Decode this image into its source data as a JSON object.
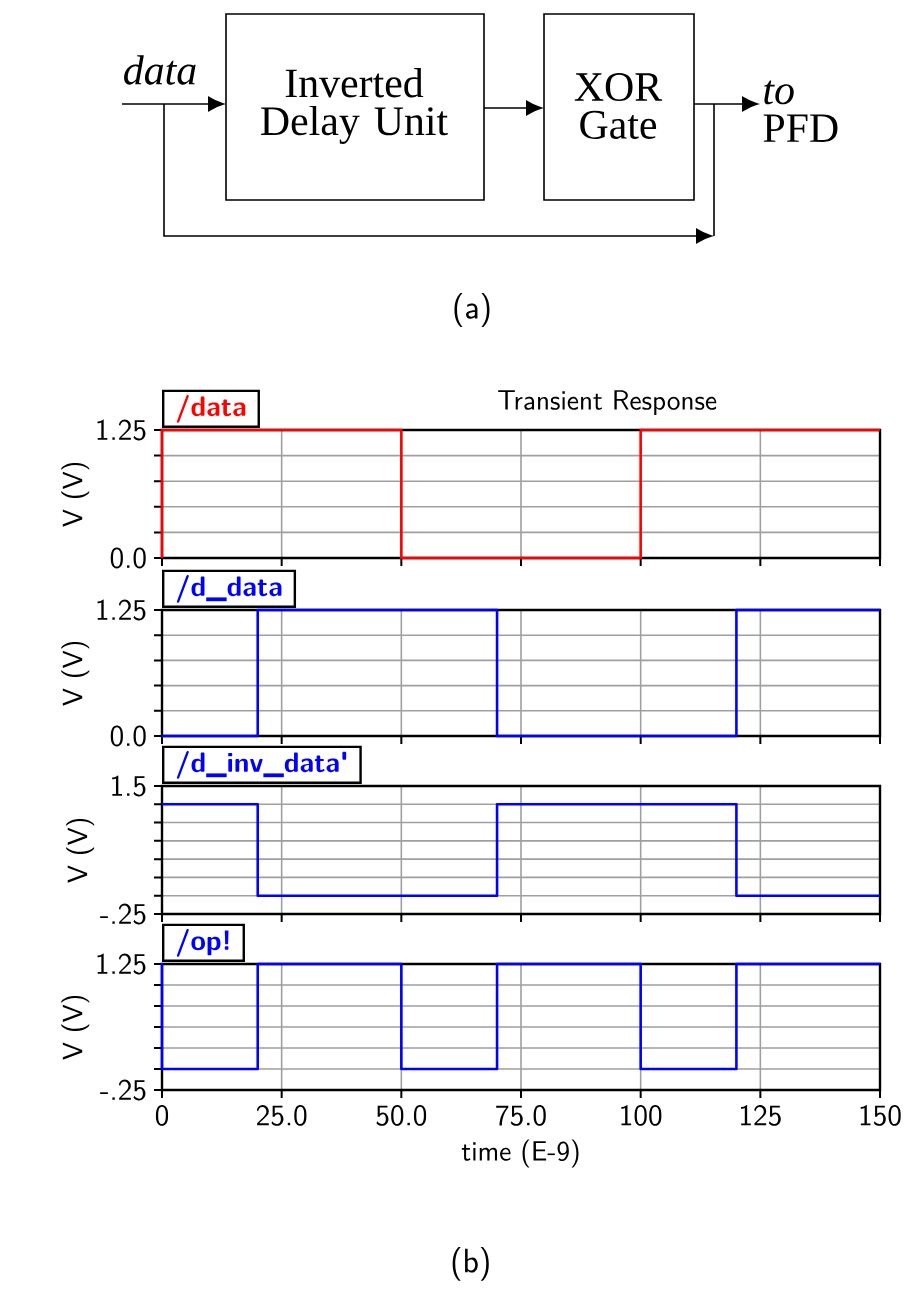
{
  "chart_data": [
    {
      "type": "other",
      "annotations": [
        "data",
        "Inverted Delay Unit",
        "XOR Gate",
        "*to* PFD",
        "(a)"
      ]
    },
    {
      "type": "line",
      "title": "Transient Response",
      "ylabel": "V (V)",
      "xlim": [
        0,
        150
      ],
      "xticks": [
        0,
        25,
        50,
        75,
        100,
        125,
        150
      ],
      "ylim": [
        0,
        1.25
      ],
      "yticks": [
        {
          "value": 0,
          "label": "0.0"
        },
        {
          "value": 0.25,
          "label": null
        },
        {
          "value": 0.5,
          "label": null
        },
        {
          "value": 0.75,
          "label": null
        },
        {
          "value": 1.0,
          "label": null
        },
        {
          "value": 1.25,
          "label": "1.25"
        }
      ],
      "tick_labels": "y",
      "grid": true,
      "series": [
        {
          "name": "/data",
          "color": "#ff0000",
          "x": [
            0,
            0,
            50,
            50,
            100,
            100,
            150
          ],
          "values": [
            0,
            1.25,
            1.25,
            0,
            0,
            1.25,
            1.25
          ]
        }
      ]
    },
    {
      "type": "line",
      "ylabel": "V (V)",
      "xlim": [
        0,
        150
      ],
      "xticks": [
        0,
        25,
        50,
        75,
        100,
        125,
        150
      ],
      "ylim": [
        0,
        1.25
      ],
      "yticks": [
        {
          "value": 0,
          "label": "0.0"
        },
        {
          "value": 0.25,
          "label": null
        },
        {
          "value": 0.5,
          "label": null
        },
        {
          "value": 0.75,
          "label": null
        },
        {
          "value": 1.0,
          "label": null
        },
        {
          "value": 1.25,
          "label": "1.25"
        }
      ],
      "tick_labels": "y",
      "grid": true,
      "series": [
        {
          "name": "/d_data",
          "color": "#0000ff",
          "x": [
            0,
            20,
            20,
            70,
            70,
            120,
            120,
            150
          ],
          "values": [
            0,
            0,
            1.25,
            1.25,
            0,
            0,
            1.25,
            1.25
          ]
        }
      ]
    },
    {
      "type": "line",
      "ylabel": "V (V)",
      "xlim": [
        0,
        150
      ],
      "xticks": [
        0,
        25,
        50,
        75,
        100,
        125,
        150
      ],
      "ylim": [
        -0.25,
        1.5
      ],
      "yticks": [
        {
          "value": -0.25,
          "label": "-.25"
        },
        {
          "value": 0,
          "label": null
        },
        {
          "value": 0.25,
          "label": null
        },
        {
          "value": 0.5,
          "label": null
        },
        {
          "value": 0.75,
          "label": null
        },
        {
          "value": 1.0,
          "label": null
        },
        {
          "value": 1.25,
          "label": null
        },
        {
          "value": 1.5,
          "label": "1.5"
        }
      ],
      "tick_labels": "y",
      "grid": true,
      "series": [
        {
          "name": "/d_inv_data'",
          "color": "#0000ff",
          "x": [
            0,
            20,
            20,
            70,
            70,
            120,
            120,
            150
          ],
          "values": [
            1.25,
            1.25,
            0,
            0,
            1.25,
            1.25,
            0,
            0
          ]
        }
      ]
    },
    {
      "type": "line",
      "ylabel": "V (V)",
      "xlabel": "time (E-9)",
      "xlim": [
        0,
        150
      ],
      "xticks": [
        0,
        {
          "value": 25,
          "label": "25.0"
        },
        {
          "value": 50,
          "label": "50.0"
        },
        {
          "value": 75,
          "label": "75.0"
        },
        100,
        125,
        150
      ],
      "ylim": [
        -0.25,
        1.25
      ],
      "yticks": [
        {
          "value": -0.25,
          "label": "-.25"
        },
        {
          "value": 0,
          "label": null
        },
        {
          "value": 0.25,
          "label": null
        },
        {
          "value": 0.5,
          "label": null
        },
        {
          "value": 0.75,
          "label": null
        },
        {
          "value": 1.0,
          "label": null
        },
        {
          "value": 1.25,
          "label": "1.25"
        }
      ],
      "grid": true,
      "annotations": [
        "(b)"
      ],
      "series": [
        {
          "name": "/op!",
          "color": "#0000ff",
          "x": [
            0,
            0,
            0,
            20,
            20,
            50,
            50,
            70,
            70,
            100,
            100,
            120,
            120,
            150
          ],
          "values": [
            0,
            1.25,
            0,
            0,
            1.25,
            1.25,
            0,
            0,
            1.25,
            1.25,
            0,
            0,
            1.25,
            1.25
          ]
        }
      ]
    }
  ]
}
